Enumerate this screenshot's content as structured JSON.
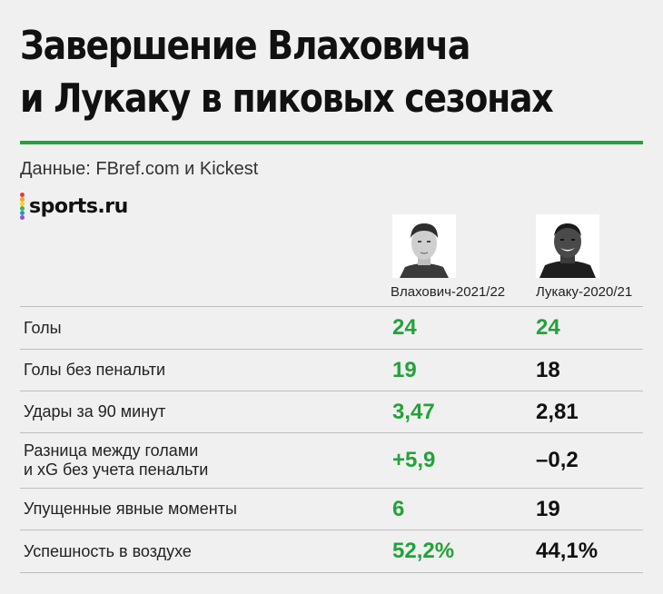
{
  "title_line1": "Завершение Влаховича",
  "title_line2": "и Лукаку в пиковых сезонах",
  "source": "Данные: FBref.com и Kickest",
  "logo": "sports.ru",
  "colors": {
    "accent_green": "#23a23a",
    "text_dark": "#111111",
    "background": "#f0f0f0",
    "logo_dots": [
      "#e23b3b",
      "#f2a428",
      "#f3d51c",
      "#3cb54a",
      "#2f8fd8",
      "#9b4dca"
    ]
  },
  "players": [
    {
      "label": "Влахович-2021/22",
      "photo": "vlahovic-portrait"
    },
    {
      "label": "Лукаку-2020/21",
      "photo": "lukaku-portrait"
    }
  ],
  "rows": [
    {
      "label": "Голы",
      "v1": "24",
      "v2": "24",
      "v1_highlight": true,
      "v2_highlight": true
    },
    {
      "label": "Голы без пенальти",
      "v1": "19",
      "v2": "18",
      "v1_highlight": true,
      "v2_highlight": false
    },
    {
      "label": "Удары за 90 минут",
      "v1": "3,47",
      "v2": "2,81",
      "v1_highlight": true,
      "v2_highlight": false
    },
    {
      "label": "Разница между голами\nи xG без учета пенальти",
      "v1": "+5,9",
      "v2": "–0,2",
      "v1_highlight": true,
      "v2_highlight": false
    },
    {
      "label": "Упущенные явные моменты",
      "v1": "6",
      "v2": "19",
      "v1_highlight": true,
      "v2_highlight": false
    },
    {
      "label": "Успешность в воздухе",
      "v1": "52,2%",
      "v2": "44,1%",
      "v1_highlight": true,
      "v2_highlight": false
    }
  ]
}
